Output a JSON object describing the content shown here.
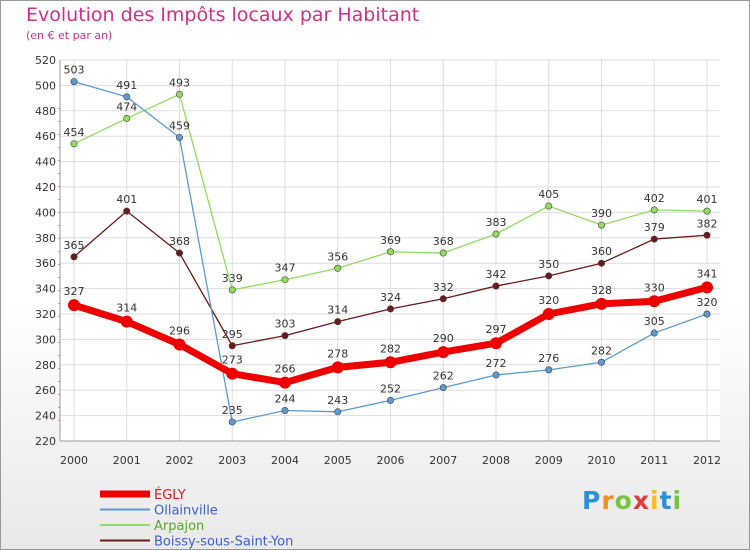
{
  "chart_data": {
    "type": "line",
    "title": "Evolution des Impôts locaux par Habitant",
    "subtitle": "(en € et par an)",
    "x": [
      "2000",
      "2001",
      "2002",
      "2003",
      "2004",
      "2005",
      "2006",
      "2007",
      "2008",
      "2009",
      "2010",
      "2011",
      "2012"
    ],
    "ylim": [
      220,
      520
    ],
    "yticks": [
      220,
      240,
      260,
      280,
      300,
      320,
      340,
      360,
      380,
      400,
      420,
      440,
      460,
      480,
      500,
      520
    ],
    "grid": true,
    "legend_position": "bottom-left",
    "series": [
      {
        "name": "Boissy-sous-Saint-Yon",
        "color": "#6b1a1a",
        "values": [
          365,
          401,
          368,
          295,
          303,
          314,
          324,
          332,
          342,
          350,
          360,
          379,
          382
        ]
      },
      {
        "name": "Arpajon",
        "color": "#90dd60",
        "values": [
          454,
          474,
          493,
          339,
          347,
          356,
          369,
          368,
          383,
          405,
          390,
          402,
          401
        ]
      },
      {
        "name": "Ollainville",
        "color": "#5b9bd1",
        "values": [
          503,
          491,
          459,
          235,
          244,
          243,
          252,
          262,
          272,
          276,
          282,
          305,
          320
        ]
      },
      {
        "name": "ÉGLY",
        "color": "#ee0000",
        "values": [
          327,
          314,
          296,
          273,
          266,
          278,
          282,
          290,
          297,
          320,
          328,
          330,
          341
        ]
      }
    ],
    "legend_order": [
      "ÉGLY",
      "Ollainville",
      "Arpajon",
      "Boissy-sous-Saint-Yon"
    ]
  },
  "logo": {
    "letters": [
      "P",
      "r",
      "o",
      "x",
      "i",
      "t",
      "i"
    ],
    "colors": [
      "#2e8fd6",
      "#f28c1c",
      "#7cc242",
      "#e03a3a",
      "#f2c01c",
      "#2e8fd6",
      "#7cc242"
    ]
  }
}
